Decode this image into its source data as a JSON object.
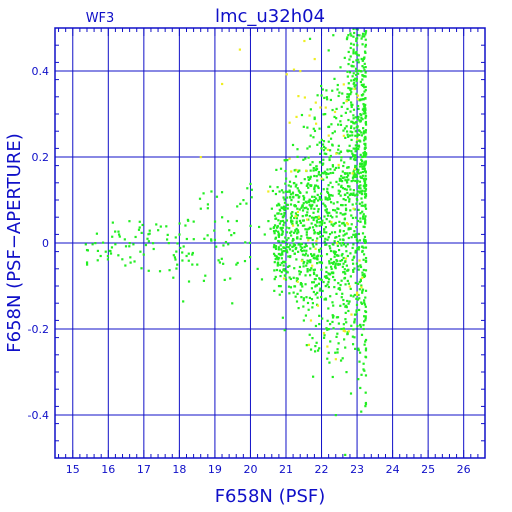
{
  "chart_data": {
    "type": "scatter",
    "title": "lmc_u32h04",
    "corner_label": "WF3",
    "xlabel": "F658N (PSF)",
    "ylabel": "F658N (PSF−APERTURE)",
    "xlim": [
      14.5,
      26.6
    ],
    "ylim": [
      -0.5,
      0.5
    ],
    "x_ticks": [
      15,
      16,
      17,
      18,
      19,
      20,
      21,
      22,
      23,
      24,
      25,
      26
    ],
    "y_ticks": [
      -0.4,
      -0.2,
      0,
      0.2,
      0.4
    ],
    "grid": true,
    "colors": {
      "axis": "#1010c8",
      "primary_points": "#22ee22",
      "secondary_points": "#eeee22",
      "background": "#ffffff"
    },
    "series": [
      {
        "color": "#22ee22",
        "distribution": "dense cloud at F658N 21-23.2, spread (PSF-APERTURE) -0.45 to 0.48; sparse tail toward brighter magnitudes near 0",
        "x": [
          15.4,
          15.7,
          16.1,
          16.3,
          16.6,
          16.9,
          17.1,
          17.4,
          17.7,
          18.0,
          18.2,
          18.4,
          18.5,
          18.6,
          18.7,
          18.8,
          18.9,
          19.0,
          19.1,
          19.2,
          19.4,
          19.6,
          19.8,
          20.0,
          20.2,
          20.4,
          20.6,
          20.8,
          21.0,
          21.1,
          21.3,
          21.5,
          21.6,
          21.8,
          21.9,
          22.0,
          22.1,
          22.2,
          22.3,
          22.4,
          22.5,
          22.6,
          22.7,
          22.8,
          22.9,
          23.0,
          23.1,
          23.2
        ],
        "y": [
          -0.05,
          -0.04,
          -0.01,
          0.02,
          0.0,
          -0.02,
          0.01,
          0.03,
          0.0,
          0.02,
          -0.03,
          0.05,
          -0.05,
          0.08,
          0.01,
          0.09,
          0.12,
          0.05,
          -0.04,
          0.06,
          0.03,
          -0.05,
          0.1,
          0.04,
          -0.06,
          0.02,
          0.08,
          -0.1,
          0.15,
          -0.08,
          0.05,
          -0.18,
          0.22,
          0.1,
          -0.25,
          -0.03,
          0.3,
          -0.2,
          0.06,
          -0.4,
          0.35,
          0.0,
          -0.3,
          0.25,
          0.45,
          0.1,
          0.4,
          0.18
        ],
        "n_points_approx": 1600
      },
      {
        "color": "#eeee22",
        "x": [
          18.6,
          19.2,
          19.7,
          20.5,
          21.1,
          21.4,
          21.7,
          22.0,
          22.2,
          22.4,
          22.7,
          22.9,
          23.0
        ],
        "y": [
          0.2,
          0.37,
          0.45,
          0.12,
          0.28,
          0.4,
          -0.18,
          0.15,
          0.25,
          -0.27,
          0.33,
          0.08,
          -0.12
        ],
        "n_points_approx": 60
      }
    ]
  }
}
